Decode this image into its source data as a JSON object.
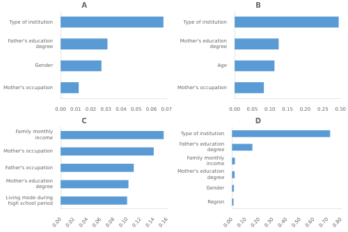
{
  "chart_data": [
    {
      "type": "bar",
      "title": "A",
      "orientation": "horizontal",
      "color": "#5B9BD5",
      "grid": false,
      "categories": [
        "Type of institution",
        "Father's education\ndegree",
        "Gender",
        "Mother's occupation"
      ],
      "values": [
        0.068,
        0.031,
        0.027,
        0.012
      ],
      "xlim": [
        0,
        0.07
      ],
      "xticks": [
        {
          "value": 0,
          "label": "0.00"
        },
        0.01,
        0.02,
        0.03,
        0.04,
        0.05,
        0.06,
        0.07
      ]
    },
    {
      "type": "bar",
      "title": "B",
      "orientation": "horizontal",
      "color": "#5B9BD5",
      "grid": false,
      "categories": [
        "Type of institution",
        "Mother's education\ndegree",
        "Age",
        "Mother's occupation"
      ],
      "values": [
        0.295,
        0.125,
        0.113,
        0.083
      ],
      "xlim": [
        0,
        0.3
      ],
      "xticks": [
        {
          "value": 0,
          "label": "0.00"
        },
        0.05,
        {
          "value": 0.1,
          "label": "0.10"
        },
        0.15,
        {
          "value": 0.2,
          "label": "0.20"
        },
        0.25,
        {
          "value": 0.3,
          "label": "0.30"
        }
      ]
    },
    {
      "type": "bar",
      "title": "C",
      "orientation": "horizontal",
      "color": "#5B9BD5",
      "grid": false,
      "categories": [
        "Family monthly\nincome",
        "Mother's occupation",
        "Father's occupation",
        "Mother's education\ndegree",
        "Living mode during\nhigh school period"
      ],
      "values": [
        0.155,
        0.14,
        0.11,
        0.102,
        0.1
      ],
      "xlim": [
        0,
        0.16
      ],
      "xticks": [
        {
          "value": 0,
          "label": "0.00"
        },
        0.02,
        0.04,
        0.06,
        0.08,
        {
          "value": 0.1,
          "label": "0.10"
        },
        0.12,
        0.14,
        0.16
      ]
    },
    {
      "type": "bar",
      "title": "D",
      "orientation": "horizontal",
      "color": "#5B9BD5",
      "grid": false,
      "categories": [
        "Type of institution",
        "Father's education\ndegree",
        "Family monthly\nincome",
        "Mother's education\ndegree",
        "Gender",
        "Region"
      ],
      "values": [
        0.72,
        0.15,
        0.022,
        0.02,
        0.015,
        0.012
      ],
      "xlim": [
        0,
        0.8
      ],
      "xticks": [
        {
          "value": 0,
          "label": "0.00"
        },
        {
          "value": 0.1,
          "label": "0.10"
        },
        {
          "value": 0.2,
          "label": "0.20"
        },
        {
          "value": 0.3,
          "label": "0.30"
        },
        {
          "value": 0.4,
          "label": "0.40"
        },
        {
          "value": 0.5,
          "label": "0.50"
        },
        {
          "value": 0.6,
          "label": "0.60"
        },
        {
          "value": 0.7,
          "label": "0.70"
        },
        {
          "value": 0.8,
          "label": "0.80"
        }
      ]
    }
  ]
}
